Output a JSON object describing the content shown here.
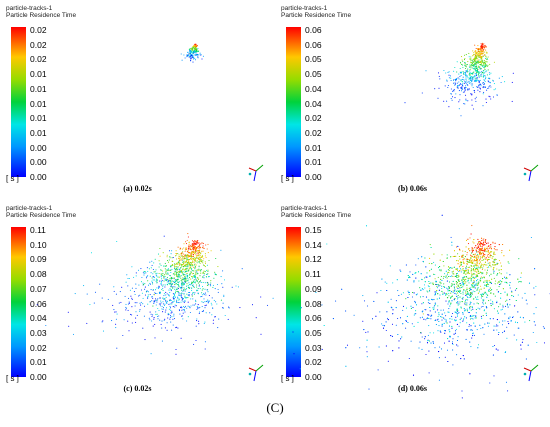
{
  "chart_data": [
    {
      "type": "scatter",
      "header_line1": "particle-tracks-1",
      "header_line2": "Particle Residence Time",
      "unit": "[ s ]",
      "caption": "(a) 0.02s",
      "colorbar_ticks": [
        "0.02",
        "0.02",
        "0.02",
        "0.01",
        "0.01",
        "0.01",
        "0.01",
        "0.01",
        "0.00",
        "0.00",
        "0.00"
      ],
      "vmax": 0.02,
      "spread": 0.12
    },
    {
      "type": "scatter",
      "header_line1": "particle-tracks-1",
      "header_line2": "Particle Residence Time",
      "unit": "[ s ]",
      "caption": "(b) 0.06s",
      "colorbar_ticks": [
        "0.06",
        "0.06",
        "0.05",
        "0.05",
        "0.04",
        "0.04",
        "0.02",
        "0.02",
        "0.01",
        "0.01",
        "0.00"
      ],
      "vmax": 0.06,
      "spread": 0.45
    },
    {
      "type": "scatter",
      "header_line1": "particle-tracks-1",
      "header_line2": "Particle Residence Time",
      "unit": "[ s ]",
      "caption": "(c) 0.02s",
      "colorbar_ticks": [
        "0.11",
        "0.10",
        "0.09",
        "0.08",
        "0.07",
        "0.06",
        "0.04",
        "0.03",
        "0.02",
        "0.01",
        "0.00"
      ],
      "vmax": 0.11,
      "spread": 0.8
    },
    {
      "type": "scatter",
      "header_line1": "particle-tracks-1",
      "header_line2": "Particle Residence Time",
      "unit": "[ s ]",
      "caption": "(d) 0.06s",
      "colorbar_ticks": [
        "0.15",
        "0.14",
        "0.12",
        "0.11",
        "0.09",
        "0.08",
        "0.06",
        "0.05",
        "0.03",
        "0.02",
        "0.00"
      ],
      "vmax": 0.15,
      "spread": 1.0
    }
  ],
  "figure_label": "(C)"
}
